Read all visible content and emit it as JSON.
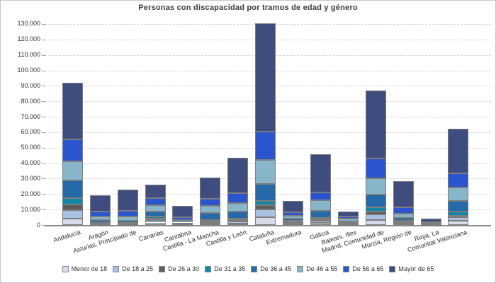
{
  "chart_data": {
    "type": "bar",
    "stacked": true,
    "title": "Personas con discapacidad por tramos de edad y género",
    "xlabel": "",
    "ylabel": "",
    "ylim": [
      0,
      135000
    ],
    "yticks": [
      0,
      10000,
      20000,
      30000,
      40000,
      50000,
      60000,
      70000,
      80000,
      90000,
      100000,
      110000,
      120000,
      130000
    ],
    "grid": true,
    "legend_position": "bottom",
    "axis_color": "#8a8a8a",
    "grid_color": "#d6d6d6",
    "text_color": "#303030",
    "title_color": "#3c3c3c",
    "segment_border_color": "#7d7d7d",
    "categories": [
      "Andalucía",
      "Aragón",
      "Asturias, Principado de",
      "Canarias",
      "Cantabria",
      "Castilla - La Mancha",
      "Castilla y León",
      "Cataluña",
      "Extremadura",
      "Galicia",
      "Balears, Illes",
      "Madrid, Comunidad de",
      "Murcia, Región de",
      "Rioja, La",
      "Comunitat Valenciana"
    ],
    "series": [
      {
        "name": "Menor de 18",
        "color": "#d7daeb",
        "values": [
          3900,
          250,
          250,
          1600,
          150,
          700,
          1000,
          4900,
          1000,
          1500,
          400,
          3400,
          900,
          100,
          2700
        ]
      },
      {
        "name": "De 18 a 25",
        "color": "#aac2e1",
        "values": [
          5600,
          350,
          300,
          1400,
          200,
          900,
          1200,
          5000,
          900,
          1200,
          500,
          3300,
          900,
          150,
          2200
        ]
      },
      {
        "name": "De 26 a 30",
        "color": "#5d5d5d",
        "values": [
          3800,
          300,
          250,
          900,
          150,
          600,
          800,
          2900,
          450,
          800,
          300,
          2000,
          450,
          80,
          1200
        ]
      },
      {
        "name": "De 31 a 35",
        "color": "#1286a5",
        "values": [
          4100,
          400,
          350,
          1500,
          200,
          1200,
          1200,
          2700,
          450,
          1100,
          400,
          2600,
          700,
          100,
          2400
        ]
      },
      {
        "name": "De 36 a 45",
        "color": "#2569a8",
        "values": [
          11400,
          1800,
          1400,
          3400,
          900,
          4600,
          4600,
          11000,
          1400,
          4600,
          900,
          8400,
          1700,
          300,
          7200
        ]
      },
      {
        "name": "De 46 a 55",
        "color": "#87b5c9",
        "values": [
          12600,
          2500,
          3100,
          4100,
          1800,
          4300,
          5600,
          15700,
          1800,
          6600,
          1400,
          10700,
          2600,
          350,
          8700
        ]
      },
      {
        "name": "De 56 a 65",
        "color": "#2b54cf",
        "values": [
          14100,
          3000,
          3700,
          4600,
          1500,
          4600,
          6100,
          18300,
          2300,
          5300,
          1400,
          12400,
          4100,
          700,
          9200
        ]
      },
      {
        "name": "Mayor de 65",
        "color": "#3e4d7d",
        "values": [
          36600,
          10400,
          13500,
          8400,
          7600,
          13600,
          23200,
          70000,
          7300,
          24700,
          3500,
          44000,
          16800,
          2300,
          28600
        ]
      }
    ]
  }
}
